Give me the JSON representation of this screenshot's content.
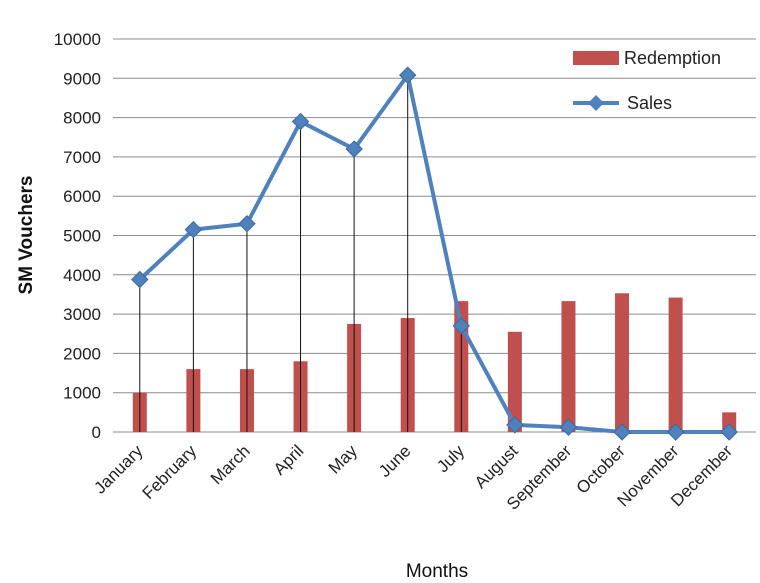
{
  "chart_data": {
    "type": "bar",
    "categories": [
      "January",
      "February",
      "March",
      "April",
      "May",
      "June",
      "July",
      "August",
      "September",
      "October",
      "November",
      "December"
    ],
    "series": [
      {
        "name": "Redemption",
        "type": "bar",
        "color": "#c0504d",
        "values": [
          1000,
          1600,
          1600,
          1800,
          2750,
          2900,
          3330,
          2550,
          3330,
          3530,
          3420,
          500
        ]
      },
      {
        "name": "Sales",
        "type": "line",
        "color": "#4f81bd",
        "values": [
          3880,
          5150,
          5300,
          7900,
          7200,
          9080,
          2700,
          180,
          120,
          0,
          0,
          0
        ]
      }
    ],
    "title": "",
    "xlabel": "Months",
    "ylabel": "SM Vouchers",
    "ylim": [
      0,
      10000
    ],
    "yticks": [
      "0",
      "1000",
      "2000",
      "3000",
      "4000",
      "5000",
      "6000",
      "7000",
      "8000",
      "9000",
      "10000"
    ],
    "grid": true,
    "drop_lines": true,
    "legend_position": "top-right"
  }
}
